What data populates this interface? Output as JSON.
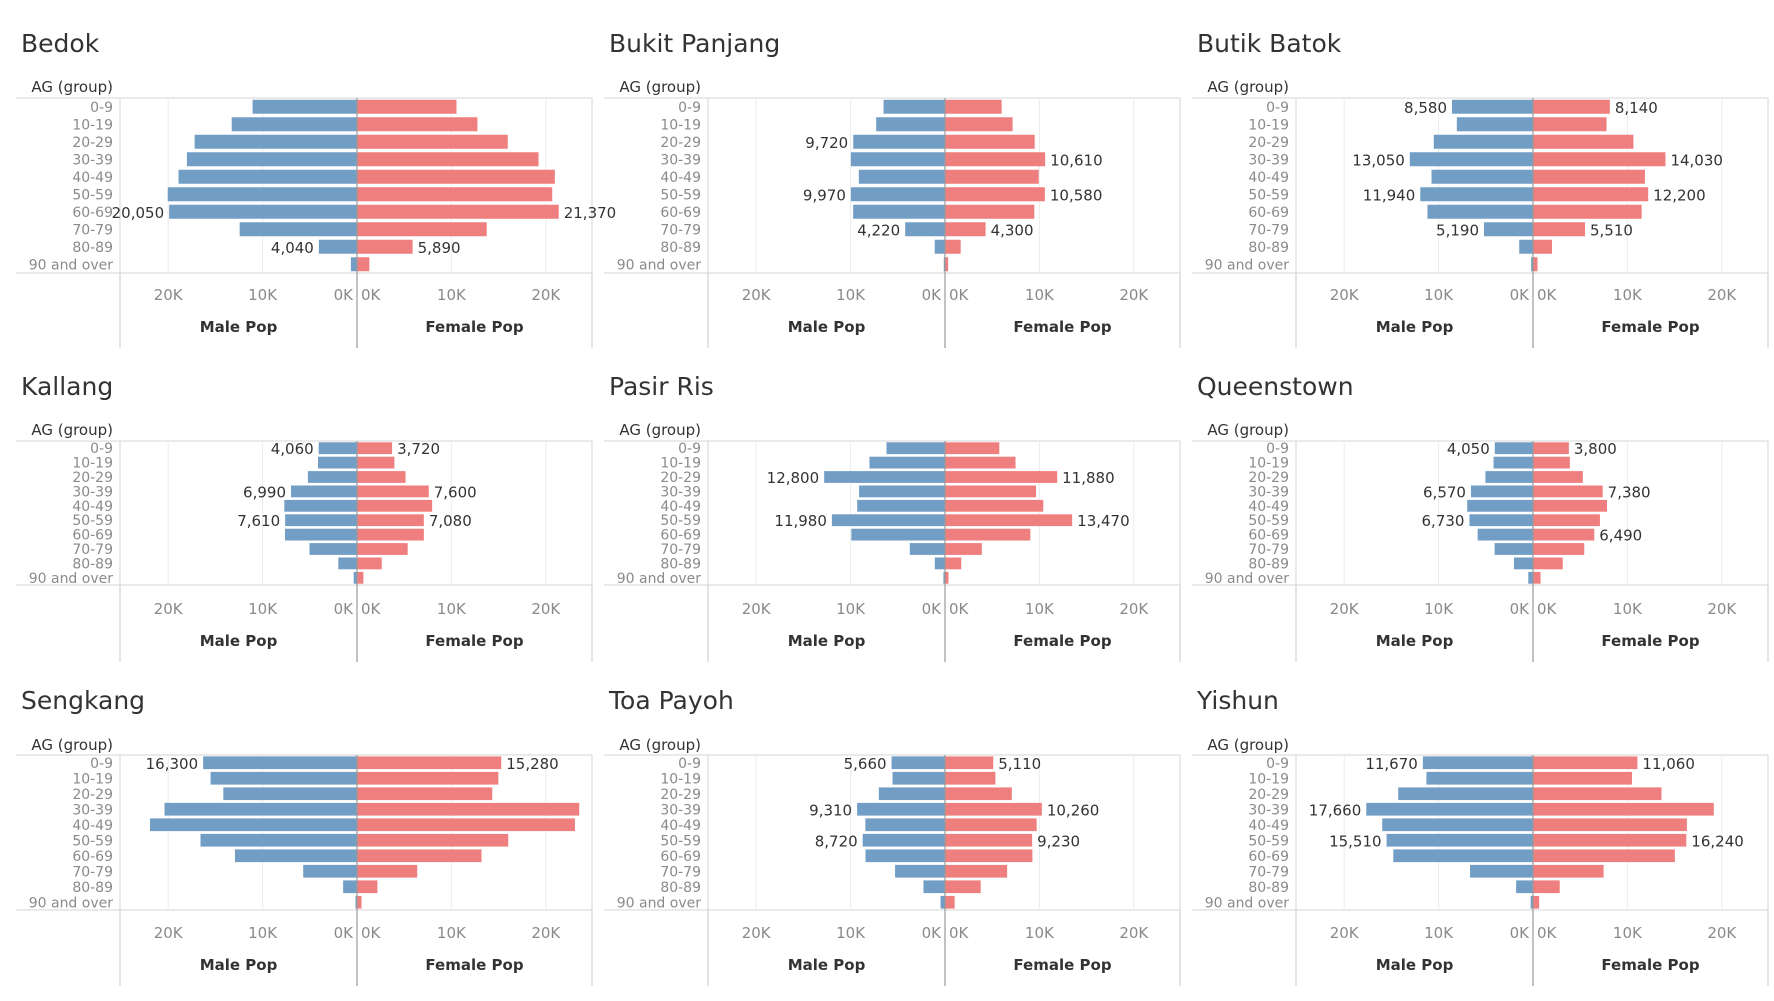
{
  "chart_data": {
    "type": "bar",
    "orientation": "horizontal",
    "layout": "population-pyramid-grid",
    "row_header": "AG (group)",
    "age_groups": [
      "0-9",
      "10-19",
      "20-29",
      "30-39",
      "40-49",
      "50-59",
      "60-69",
      "70-79",
      "80-89",
      "90 and over"
    ],
    "left_axis_label": "Male Pop",
    "right_axis_label": "Female Pop",
    "left_ticks": [
      "20K",
      "10K",
      "0K"
    ],
    "right_ticks": [
      "0K",
      "10K",
      "20K"
    ],
    "colors": {
      "male": "#729ec6",
      "female": "#ef7f7e",
      "grid": "#d4d4d4",
      "axis": "#c8c8c8",
      "tick_text": "#8a8a8a",
      "title_text": "#333333"
    },
    "panels": [
      {
        "title": "Bedok",
        "max": 25000,
        "male": [
          11060,
          13270,
          17200,
          18020,
          18910,
          20050,
          19900,
          12430,
          4040,
          650
        ],
        "female": [
          10540,
          12760,
          15970,
          19230,
          20960,
          20680,
          21370,
          13740,
          5890,
          1310
        ],
        "male_labels": [
          "",
          "",
          "",
          "",
          "",
          "",
          "20,050",
          "",
          "4,040",
          ""
        ],
        "female_labels": [
          "",
          "",
          "",
          "",
          "",
          "",
          "21,370",
          "",
          "5,890",
          ""
        ]
      },
      {
        "title": "Bukit Panjang",
        "max": 25000,
        "male": [
          6510,
          7290,
          9720,
          9970,
          9130,
          9970,
          9730,
          4220,
          1090,
          130
        ],
        "female": [
          6000,
          7160,
          9500,
          10610,
          9930,
          10580,
          9460,
          4300,
          1660,
          330
        ],
        "male_labels": [
          "",
          "",
          "9,720",
          "",
          "",
          "9,970",
          "",
          "4,220",
          "",
          ""
        ],
        "female_labels": [
          "",
          "",
          "",
          "10,610",
          "",
          "10,580",
          "",
          "4,300",
          "",
          ""
        ]
      },
      {
        "title": "Butik Batok",
        "max": 25000,
        "male": [
          8580,
          8070,
          10510,
          13050,
          10750,
          11940,
          11180,
          5190,
          1460,
          200
        ],
        "female": [
          8140,
          7790,
          10640,
          14030,
          11860,
          12200,
          11510,
          5510,
          2010,
          480
        ],
        "male_labels": [
          "8,580",
          "",
          "",
          "13,050",
          "",
          "11,940",
          "",
          "5,190",
          "",
          ""
        ],
        "female_labels": [
          "8,140",
          "",
          "",
          "14,030",
          "",
          "12,200",
          "",
          "5,510",
          "",
          ""
        ]
      },
      {
        "title": "Kallang",
        "max": 25000,
        "male": [
          4060,
          4130,
          5200,
          6990,
          7700,
          7610,
          7630,
          5030,
          1980,
          350
        ],
        "female": [
          3720,
          3960,
          5140,
          7600,
          7960,
          7080,
          7080,
          5370,
          2620,
          680
        ],
        "male_labels": [
          "4,060",
          "",
          "",
          "6,990",
          "",
          "7,610",
          "",
          "",
          "",
          ""
        ],
        "female_labels": [
          "3,720",
          "",
          "",
          "7,600",
          "",
          "7,080",
          "",
          "",
          "",
          ""
        ]
      },
      {
        "title": "Pasir Ris",
        "max": 25000,
        "male": [
          6200,
          8000,
          12800,
          9100,
          9300,
          11980,
          9920,
          3730,
          1080,
          170
        ],
        "female": [
          5750,
          7470,
          11880,
          9640,
          10410,
          13470,
          9040,
          3900,
          1720,
          370
        ],
        "male_labels": [
          "",
          "",
          "12,800",
          "",
          "",
          "11,980",
          "",
          "",
          "",
          ""
        ],
        "female_labels": [
          "",
          "",
          "11,880",
          "",
          "",
          "13,470",
          "",
          "",
          "",
          ""
        ]
      },
      {
        "title": "Queenstown",
        "max": 25000,
        "male": [
          4050,
          4180,
          5040,
          6570,
          6970,
          6730,
          5860,
          4070,
          2020,
          500
        ],
        "female": [
          3800,
          3900,
          5280,
          7380,
          7840,
          7090,
          6490,
          5430,
          3150,
          800
        ],
        "male_labels": [
          "4,050",
          "",
          "",
          "6,570",
          "",
          "6,730",
          "",
          "",
          "",
          ""
        ],
        "female_labels": [
          "3,800",
          "",
          "",
          "7,380",
          "",
          "",
          "6,490",
          "",
          "",
          ""
        ]
      },
      {
        "title": "Sengkang",
        "max": 25000,
        "male": [
          16300,
          15510,
          14160,
          20390,
          21930,
          16580,
          12930,
          5700,
          1470,
          160
        ],
        "female": [
          15280,
          14970,
          14330,
          23540,
          23090,
          16020,
          13190,
          6380,
          2160,
          480
        ],
        "male_labels": [
          "16,300",
          "",
          "",
          "",
          "",
          "",
          "",
          "",
          "",
          ""
        ],
        "female_labels": [
          "15,280",
          "",
          "",
          "",
          "",
          "",
          "",
          "",
          "",
          ""
        ]
      },
      {
        "title": "Toa Payoh",
        "max": 25000,
        "male": [
          5660,
          5560,
          7010,
          9310,
          8440,
          8720,
          8420,
          5290,
          2280,
          470
        ],
        "female": [
          5110,
          5340,
          7080,
          10260,
          9710,
          9230,
          9260,
          6580,
          3780,
          1020
        ],
        "male_labels": [
          "5,660",
          "",
          "",
          "9,310",
          "",
          "8,720",
          "",
          "",
          "",
          ""
        ],
        "female_labels": [
          "5,110",
          "",
          "",
          "10,260",
          "",
          "9,230",
          "",
          "",
          "",
          ""
        ]
      },
      {
        "title": "Yishun",
        "max": 25000,
        "male": [
          11670,
          11290,
          14280,
          17660,
          15970,
          15510,
          14800,
          6670,
          1790,
          250
        ],
        "female": [
          11060,
          10490,
          13610,
          19150,
          16300,
          16240,
          15030,
          7480,
          2830,
          650
        ],
        "male_labels": [
          "11,670",
          "",
          "",
          "17,660",
          "",
          "15,510",
          "",
          "",
          "",
          ""
        ],
        "female_labels": [
          "11,060",
          "",
          "",
          "",
          "",
          "16,240",
          "",
          "",
          "",
          ""
        ]
      }
    ]
  }
}
